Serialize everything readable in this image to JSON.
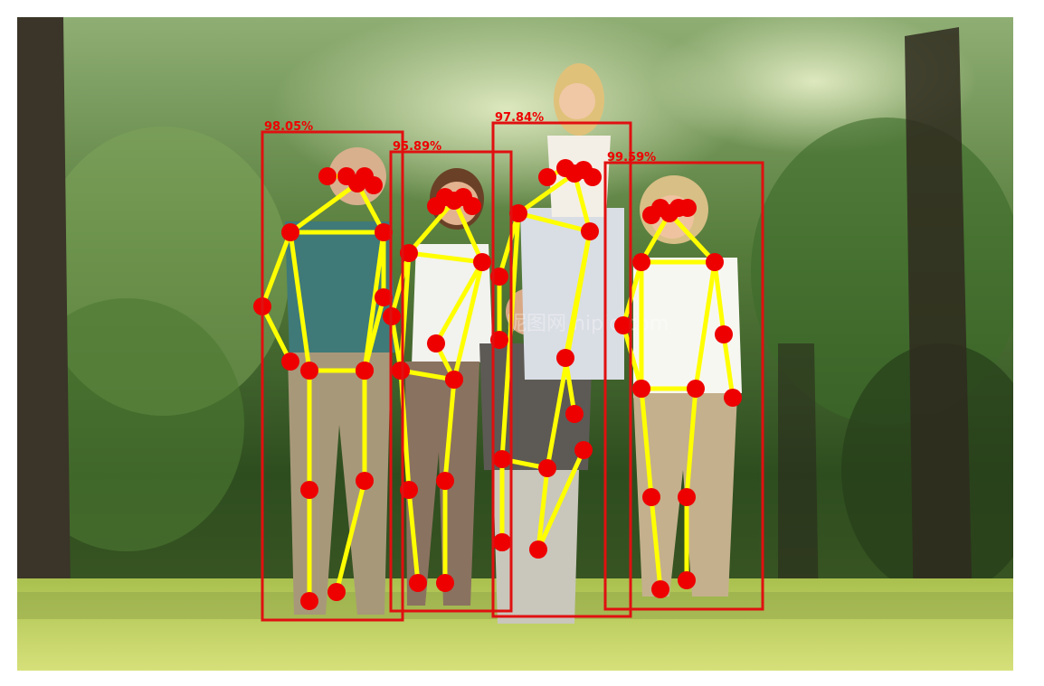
{
  "figure": {
    "kind": "pose-estimation-overlay",
    "colors": {
      "box": "#e01010",
      "skeleton": "#ffff00",
      "keypoint": "#ee0000",
      "label": "#ee0000"
    },
    "detections": [
      {
        "label": "98.05%"
      },
      {
        "label": "95.89%"
      },
      {
        "label": "97.84%"
      },
      {
        "label": "99.59%"
      }
    ],
    "watermark": "昵图网 nipic.com"
  }
}
